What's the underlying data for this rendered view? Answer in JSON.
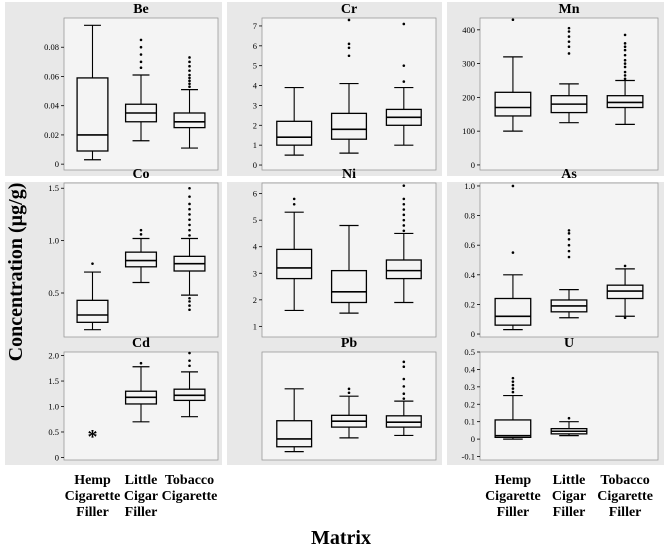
{
  "figure": {
    "y_axis_title": "Concentration (µg/g)",
    "x_axis_title": "Matrix",
    "colors": {
      "background": "#ffffff",
      "panel_band": "#e8e8e8",
      "plot_area": "#f4f4f4",
      "box": "#000000"
    }
  },
  "chart_data": [
    {
      "type": "box",
      "title": "Be",
      "ylim": [
        -0.004,
        0.1
      ],
      "yticks": [
        0,
        0.02,
        0.04,
        0.06,
        0.08
      ],
      "ytick_labels": [
        "0",
        "0.02",
        "0.04",
        "0.06",
        "0.08"
      ],
      "categories": [
        "Hemp Cigarette Filler",
        "Little Cigar Filler",
        "Tobacco Cigarette"
      ],
      "series": [
        {
          "min": 0.003,
          "q1": 0.009,
          "median": 0.02,
          "q3": 0.059,
          "max": 0.095,
          "outliers": []
        },
        {
          "min": 0.016,
          "q1": 0.029,
          "median": 0.035,
          "q3": 0.041,
          "max": 0.061,
          "outliers": [
            0.066,
            0.07,
            0.075,
            0.08,
            0.085
          ]
        },
        {
          "min": 0.011,
          "q1": 0.025,
          "median": 0.029,
          "q3": 0.035,
          "max": 0.051,
          "outliers": [
            0.053,
            0.055,
            0.057,
            0.059,
            0.061,
            0.064,
            0.067,
            0.07,
            0.073
          ]
        }
      ]
    },
    {
      "type": "box",
      "title": "Cr",
      "ylim": [
        -0.25,
        7.4
      ],
      "yticks": [
        0,
        1,
        2,
        3,
        4,
        5,
        6,
        7
      ],
      "ytick_labels": [
        "0",
        "1",
        "2",
        "3",
        "4",
        "5",
        "6",
        "7"
      ],
      "categories": [
        "Hemp Cigarette Filler",
        "Little Cigar Filler",
        "Tobacco Cigarette"
      ],
      "series": [
        {
          "min": 0.5,
          "q1": 1.0,
          "median": 1.4,
          "q3": 2.2,
          "max": 3.9,
          "outliers": []
        },
        {
          "min": 0.6,
          "q1": 1.3,
          "median": 1.8,
          "q3": 2.6,
          "max": 4.1,
          "outliers": [
            5.5,
            5.9,
            6.1,
            7.3
          ]
        },
        {
          "min": 1.0,
          "q1": 2.0,
          "median": 2.4,
          "q3": 2.8,
          "max": 3.9,
          "outliers": [
            4.2,
            5.0,
            7.1
          ]
        }
      ]
    },
    {
      "type": "box",
      "title": "Mn",
      "ylim": [
        -15,
        435
      ],
      "yticks": [
        0,
        100,
        200,
        300,
        400
      ],
      "ytick_labels": [
        "0",
        "100",
        "200",
        "300",
        "400"
      ],
      "categories": [
        "Hemp Cigarette Filler",
        "Little Cigar Filler",
        "Tobacco Cigarette"
      ],
      "series": [
        {
          "min": 100,
          "q1": 145,
          "median": 170,
          "q3": 215,
          "max": 320,
          "outliers": [
            430
          ]
        },
        {
          "min": 125,
          "q1": 155,
          "median": 180,
          "q3": 205,
          "max": 240,
          "outliers": [
            330,
            350,
            365,
            380,
            395,
            405
          ]
        },
        {
          "min": 120,
          "q1": 170,
          "median": 185,
          "q3": 205,
          "max": 250,
          "outliers": [
            255,
            265,
            275,
            290,
            300,
            310,
            325,
            340,
            350,
            360,
            385
          ]
        }
      ]
    },
    {
      "type": "box",
      "title": "Co",
      "ylim": [
        0.08,
        1.55
      ],
      "yticks": [
        0.5,
        1.0,
        1.5
      ],
      "ytick_labels": [
        "0.5",
        "1.0",
        "1.5"
      ],
      "categories": [
        "Hemp Cigarette Filler",
        "Little Cigar Filler",
        "Tobacco Cigarette"
      ],
      "series": [
        {
          "min": 0.15,
          "q1": 0.22,
          "median": 0.29,
          "q3": 0.43,
          "max": 0.7,
          "outliers": [
            0.78
          ]
        },
        {
          "min": 0.6,
          "q1": 0.75,
          "median": 0.81,
          "q3": 0.89,
          "max": 1.02,
          "outliers": [
            1.06,
            1.1
          ]
        },
        {
          "min": 0.48,
          "q1": 0.71,
          "median": 0.78,
          "q3": 0.85,
          "max": 1.02,
          "outliers": [
            0.34,
            0.38,
            0.42,
            0.45,
            1.05,
            1.1,
            1.15,
            1.2,
            1.25,
            1.3,
            1.35,
            1.42,
            1.5
          ]
        }
      ]
    },
    {
      "type": "box",
      "title": "Ni",
      "ylim": [
        0.6,
        6.4
      ],
      "yticks": [
        1,
        2,
        3,
        4,
        5,
        6
      ],
      "ytick_labels": [
        "1",
        "2",
        "3",
        "4",
        "5",
        "6"
      ],
      "categories": [
        "Hemp Cigarette Filler",
        "Little Cigar Filler",
        "Tobacco Cigarette"
      ],
      "series": [
        {
          "min": 1.6,
          "q1": 2.8,
          "median": 3.2,
          "q3": 3.9,
          "max": 5.3,
          "outliers": [
            5.6,
            5.8
          ]
        },
        {
          "min": 1.5,
          "q1": 1.9,
          "median": 2.3,
          "q3": 3.1,
          "max": 4.8,
          "outliers": []
        },
        {
          "min": 1.9,
          "q1": 2.8,
          "median": 3.1,
          "q3": 3.5,
          "max": 4.5,
          "outliers": [
            4.6,
            4.8,
            5.0,
            5.2,
            5.4,
            5.6,
            5.8,
            6.3
          ]
        }
      ]
    },
    {
      "type": "box",
      "title": "As",
      "ylim": [
        -0.02,
        1.02
      ],
      "yticks": [
        0,
        0.2,
        0.4,
        0.6,
        0.8,
        1.0
      ],
      "ytick_labels": [
        "0",
        "0.2",
        "0.4",
        "0.6",
        "0.8",
        "1.0"
      ],
      "categories": [
        "Hemp Cigarette Filler",
        "Little Cigar Filler",
        "Tobacco Cigarette"
      ],
      "series": [
        {
          "min": 0.03,
          "q1": 0.06,
          "median": 0.12,
          "q3": 0.24,
          "max": 0.4,
          "outliers": [
            0.55,
            1.0
          ]
        },
        {
          "min": 0.11,
          "q1": 0.15,
          "median": 0.19,
          "q3": 0.23,
          "max": 0.3,
          "outliers": [
            0.52,
            0.56,
            0.6,
            0.64,
            0.68,
            0.7
          ]
        },
        {
          "min": 0.12,
          "q1": 0.24,
          "median": 0.29,
          "q3": 0.33,
          "max": 0.44,
          "outliers": [
            0.11,
            0.46
          ]
        }
      ]
    },
    {
      "type": "box",
      "title": "Cd",
      "ylim": [
        -0.05,
        2.07
      ],
      "yticks": [
        0,
        0.5,
        1.0,
        1.5,
        2.0
      ],
      "ytick_labels": [
        "0",
        "0.5",
        "1.0",
        "1.5",
        "2.0"
      ],
      "categories": [
        "Hemp Cigarette Filler",
        "Little Cigar Filler",
        "Tobacco Cigarette"
      ],
      "series": [
        {
          "marker_only": true,
          "marker_label": "*",
          "marker_value": 0.5
        },
        {
          "min": 0.7,
          "q1": 1.05,
          "median": 1.18,
          "q3": 1.3,
          "max": 1.78,
          "outliers": [
            1.85
          ]
        },
        {
          "min": 0.8,
          "q1": 1.12,
          "median": 1.22,
          "q3": 1.34,
          "max": 1.68,
          "outliers": [
            1.8,
            1.9,
            2.05
          ]
        }
      ]
    },
    {
      "type": "box",
      "title": "Pb",
      "ylim": [
        -0.05,
        2.15
      ],
      "yticks": [],
      "ytick_labels": [],
      "categories": [
        "Hemp Cigarette Filler",
        "Little Cigar Filler",
        "Tobacco Cigarette"
      ],
      "series": [
        {
          "min": 0.12,
          "q1": 0.22,
          "median": 0.38,
          "q3": 0.75,
          "max": 1.4,
          "outliers": []
        },
        {
          "min": 0.4,
          "q1": 0.62,
          "median": 0.74,
          "q3": 0.86,
          "max": 1.25,
          "outliers": [
            1.32,
            1.4
          ]
        },
        {
          "min": 0.45,
          "q1": 0.62,
          "median": 0.72,
          "q3": 0.85,
          "max": 1.15,
          "outliers": [
            1.2,
            1.3,
            1.45,
            1.6,
            1.85,
            1.95
          ]
        }
      ]
    },
    {
      "type": "box",
      "title": "U",
      "ylim": [
        -0.12,
        0.5
      ],
      "yticks": [
        -0.1,
        0,
        0.1,
        0.2,
        0.3,
        0.4,
        0.5
      ],
      "ytick_labels": [
        "-0.1",
        "0",
        "0.1",
        "0.2",
        "0.3",
        "0.4",
        "0.5"
      ],
      "categories": [
        "Hemp Cigarette Filler",
        "Little Cigar Filler",
        "Tobacco Cigarette Filler"
      ],
      "series": [
        {
          "min": 0.0,
          "q1": 0.01,
          "median": 0.02,
          "q3": 0.11,
          "max": 0.25,
          "outliers": [
            0.27,
            0.29,
            0.31,
            0.33,
            0.35
          ]
        },
        {
          "min": 0.02,
          "q1": 0.03,
          "median": 0.045,
          "q3": 0.06,
          "max": 0.1,
          "outliers": [
            0.12
          ]
        },
        null
      ]
    }
  ],
  "x_category_labels": [
    {
      "lines": [
        "Hemp",
        "Cigarette",
        "Filler"
      ]
    },
    {
      "lines": [
        "Little",
        "Cigar",
        "Filler"
      ]
    },
    {
      "lines": [
        "Tobacco",
        "Cigarette"
      ]
    },
    {
      "lines": [
        "Hemp",
        "Cigarette",
        "Filler"
      ]
    },
    {
      "lines": [
        "Little",
        "Cigar",
        "Filler"
      ]
    },
    {
      "lines": [
        "Tobacco",
        "Cigarette",
        "Filler"
      ]
    }
  ]
}
